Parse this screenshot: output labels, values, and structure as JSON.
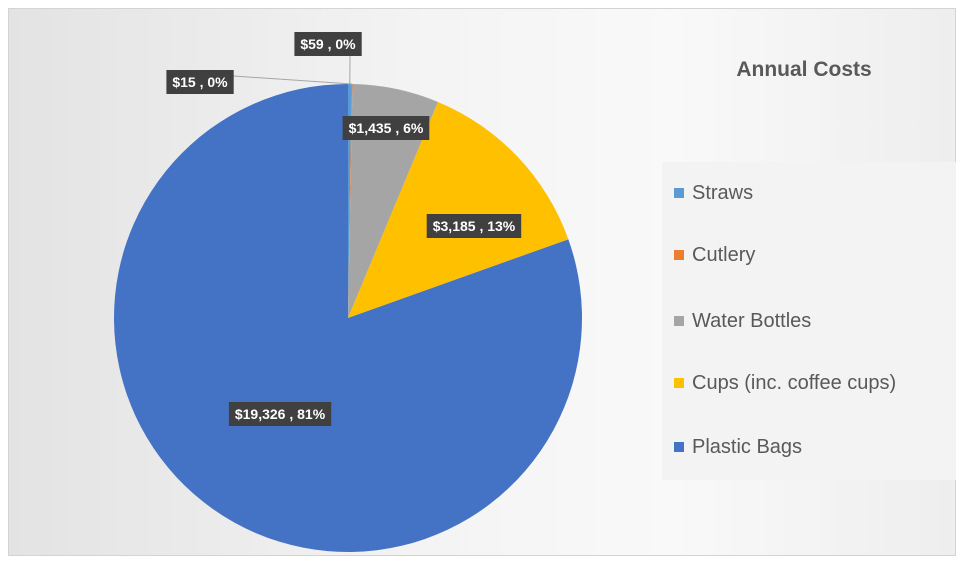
{
  "chart_data": {
    "type": "pie",
    "title": "Annual Costs",
    "slices": [
      {
        "name": "Straws",
        "value": 59,
        "percent": 0,
        "label": "$59 , 0%",
        "color": "#5b9bd5"
      },
      {
        "name": "Cutlery",
        "value": 15,
        "percent": 0,
        "label": "$15 , 0%",
        "color": "#ed7d31"
      },
      {
        "name": "Water Bottles",
        "value": 1435,
        "percent": 6,
        "label": "$1,435 , 6%",
        "color": "#a5a5a5"
      },
      {
        "name": "Cups (inc. coffee cups)",
        "value": 3185,
        "percent": 13,
        "label": "$3,185 , 13%",
        "color": "#ffc000"
      },
      {
        "name": "Plastic Bags",
        "value": 19326,
        "percent": 81,
        "label": "$19,326 , 81%",
        "color": "#4472c4"
      }
    ],
    "legend_position": "right",
    "data_labels": "value, percent"
  }
}
